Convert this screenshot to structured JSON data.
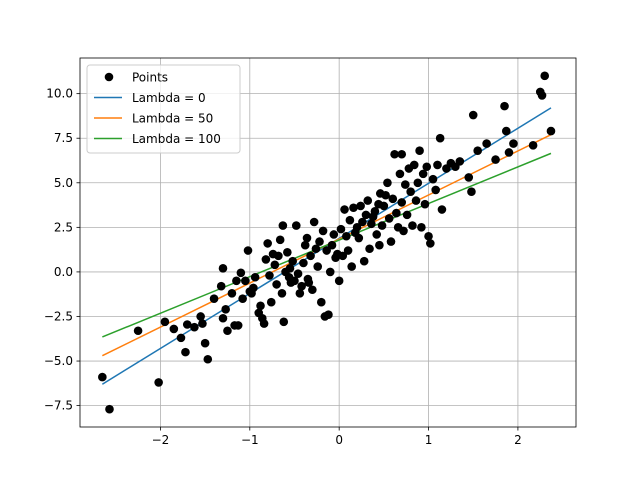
{
  "chart_data": {
    "type": "scatter",
    "xlim": [
      -2.9,
      2.65
    ],
    "ylim": [
      -8.7,
      12.0
    ],
    "x_ticks": [
      -2,
      -1,
      0,
      1,
      2
    ],
    "y_ticks": [
      -7.5,
      -5.0,
      -2.5,
      0.0,
      2.5,
      5.0,
      7.5,
      10.0
    ],
    "grid": true,
    "legend_position": "top-left",
    "scatter": {
      "name": "Points",
      "color": "#000000",
      "points": [
        [
          -2.65,
          -5.9
        ],
        [
          -2.57,
          -7.7
        ],
        [
          -2.25,
          -3.3
        ],
        [
          -2.02,
          -6.2
        ],
        [
          -1.95,
          -2.8
        ],
        [
          -1.85,
          -3.2
        ],
        [
          -1.77,
          -3.7
        ],
        [
          -1.72,
          -4.5
        ],
        [
          -1.7,
          -2.95
        ],
        [
          -1.62,
          -3.1
        ],
        [
          -1.55,
          -2.5
        ],
        [
          -1.53,
          -2.9
        ],
        [
          -1.5,
          -4.0
        ],
        [
          -1.47,
          -4.9
        ],
        [
          -1.4,
          -1.5
        ],
        [
          -1.32,
          -0.8
        ],
        [
          -1.3,
          0.2
        ],
        [
          -1.27,
          -2.1
        ],
        [
          -1.25,
          -3.3
        ],
        [
          -1.2,
          -1.2
        ],
        [
          -1.17,
          -3.0
        ],
        [
          -1.15,
          -0.5
        ],
        [
          -1.13,
          -3.0
        ],
        [
          -1.1,
          -0.05
        ],
        [
          -1.08,
          -1.5
        ],
        [
          -1.05,
          -0.5
        ],
        [
          -1.02,
          1.2
        ],
        [
          -1.0,
          -1.1
        ],
        [
          -0.98,
          -1.2
        ],
        [
          -0.96,
          -0.9
        ],
        [
          -0.94,
          -0.3
        ],
        [
          -0.9,
          -2.3
        ],
        [
          -0.88,
          -1.9
        ],
        [
          -0.86,
          -2.6
        ],
        [
          -0.84,
          -2.9
        ],
        [
          -0.82,
          0.7
        ],
        [
          -0.8,
          1.6
        ],
        [
          -0.78,
          -0.2
        ],
        [
          -0.76,
          -1.7
        ],
        [
          -0.74,
          1.0
        ],
        [
          -0.72,
          0.4
        ],
        [
          -0.7,
          -0.7
        ],
        [
          -0.68,
          0.9
        ],
        [
          -0.66,
          1.8
        ],
        [
          -0.64,
          -1.2
        ],
        [
          -0.63,
          2.6
        ],
        [
          -0.62,
          -2.8
        ],
        [
          -0.6,
          0.0
        ],
        [
          -0.58,
          1.1
        ],
        [
          -0.56,
          -0.3
        ],
        [
          -0.54,
          -0.6
        ],
        [
          -0.52,
          0.6
        ],
        [
          -0.5,
          -0.5
        ],
        [
          -0.48,
          2.6
        ],
        [
          -0.46,
          -0.1
        ],
        [
          -0.44,
          -1.2
        ],
        [
          -0.42,
          -0.8
        ],
        [
          -0.4,
          0.5
        ],
        [
          -0.38,
          1.5
        ],
        [
          -0.36,
          1.9
        ],
        [
          -0.34,
          -0.6
        ],
        [
          -0.32,
          0.9
        ],
        [
          -0.3,
          -1.0
        ],
        [
          -0.28,
          2.8
        ],
        [
          -0.26,
          1.3
        ],
        [
          -0.24,
          0.3
        ],
        [
          -0.22,
          1.7
        ],
        [
          -0.2,
          -1.7
        ],
        [
          -0.18,
          2.3
        ],
        [
          -0.16,
          -2.5
        ],
        [
          -0.14,
          1.2
        ],
        [
          -0.12,
          -2.4
        ],
        [
          -0.1,
          0.0
        ],
        [
          -0.08,
          1.5
        ],
        [
          -0.06,
          2.1
        ],
        [
          -0.04,
          0.8
        ],
        [
          -0.02,
          1.0
        ],
        [
          0.0,
          -0.5
        ],
        [
          0.02,
          2.4
        ],
        [
          0.04,
          0.9
        ],
        [
          0.06,
          3.5
        ],
        [
          0.08,
          2.0
        ],
        [
          0.1,
          1.2
        ],
        [
          0.12,
          2.9
        ],
        [
          0.14,
          0.3
        ],
        [
          0.16,
          3.6
        ],
        [
          0.18,
          2.2
        ],
        [
          0.2,
          2.5
        ],
        [
          0.22,
          1.9
        ],
        [
          0.24,
          3.7
        ],
        [
          0.26,
          2.8
        ],
        [
          0.28,
          0.6
        ],
        [
          0.3,
          3.2
        ],
        [
          0.32,
          4.0
        ],
        [
          0.34,
          1.3
        ],
        [
          0.36,
          2.7
        ],
        [
          0.38,
          3.1
        ],
        [
          0.4,
          3.4
        ],
        [
          0.42,
          2.1
        ],
        [
          0.44,
          3.8
        ],
        [
          0.46,
          4.4
        ],
        [
          0.48,
          2.6
        ],
        [
          0.5,
          3.7
        ],
        [
          0.52,
          4.3
        ],
        [
          0.54,
          5.0
        ],
        [
          0.56,
          3.0
        ],
        [
          0.58,
          1.7
        ],
        [
          0.6,
          4.1
        ],
        [
          0.62,
          6.6
        ],
        [
          0.64,
          3.3
        ],
        [
          0.66,
          2.5
        ],
        [
          0.68,
          5.5
        ],
        [
          0.7,
          3.9
        ],
        [
          0.72,
          2.3
        ],
        [
          0.74,
          4.9
        ],
        [
          0.76,
          3.2
        ],
        [
          0.78,
          5.8
        ],
        [
          0.8,
          4.5
        ],
        [
          0.82,
          2.6
        ],
        [
          0.84,
          6.0
        ],
        [
          0.86,
          4.0
        ],
        [
          0.88,
          5.0
        ],
        [
          0.9,
          6.8
        ],
        [
          0.92,
          2.5
        ],
        [
          0.94,
          5.5
        ],
        [
          0.96,
          3.8
        ],
        [
          0.98,
          5.9
        ],
        [
          1.0,
          2.0
        ],
        [
          1.02,
          1.6
        ],
        [
          1.05,
          5.2
        ],
        [
          1.08,
          4.6
        ],
        [
          1.1,
          6.0
        ],
        [
          1.13,
          7.5
        ],
        [
          1.15,
          3.5
        ],
        [
          1.2,
          5.8
        ],
        [
          1.25,
          6.1
        ],
        [
          1.35,
          6.2
        ],
        [
          1.45,
          5.3
        ],
        [
          1.48,
          4.5
        ],
        [
          1.5,
          8.8
        ],
        [
          1.55,
          6.8
        ],
        [
          1.65,
          7.2
        ],
        [
          1.75,
          6.3
        ],
        [
          1.85,
          9.3
        ],
        [
          1.87,
          7.9
        ],
        [
          1.9,
          6.7
        ],
        [
          1.95,
          7.2
        ],
        [
          2.17,
          7.1
        ],
        [
          2.25,
          10.1
        ],
        [
          2.27,
          9.9
        ],
        [
          2.3,
          11.0
        ],
        [
          2.37,
          7.9
        ],
        [
          -0.55,
          0.2
        ],
        [
          0.45,
          1.5
        ],
        [
          -1.3,
          -2.6
        ],
        [
          0.7,
          6.6
        ],
        [
          1.3,
          5.9
        ],
        [
          -0.35,
          -0.4
        ]
      ]
    },
    "series": [
      {
        "name": "Lambda = 0",
        "color": "#1f77b4",
        "x": [
          -2.65,
          2.37
        ],
        "y": [
          -6.3,
          9.2
        ]
      },
      {
        "name": "Lambda = 50",
        "color": "#ff7f0e",
        "x": [
          -2.65,
          2.37
        ],
        "y": [
          -4.7,
          7.7
        ]
      },
      {
        "name": "Lambda = 100",
        "color": "#2ca02c",
        "x": [
          -2.65,
          2.37
        ],
        "y": [
          -3.65,
          6.65
        ]
      }
    ]
  }
}
